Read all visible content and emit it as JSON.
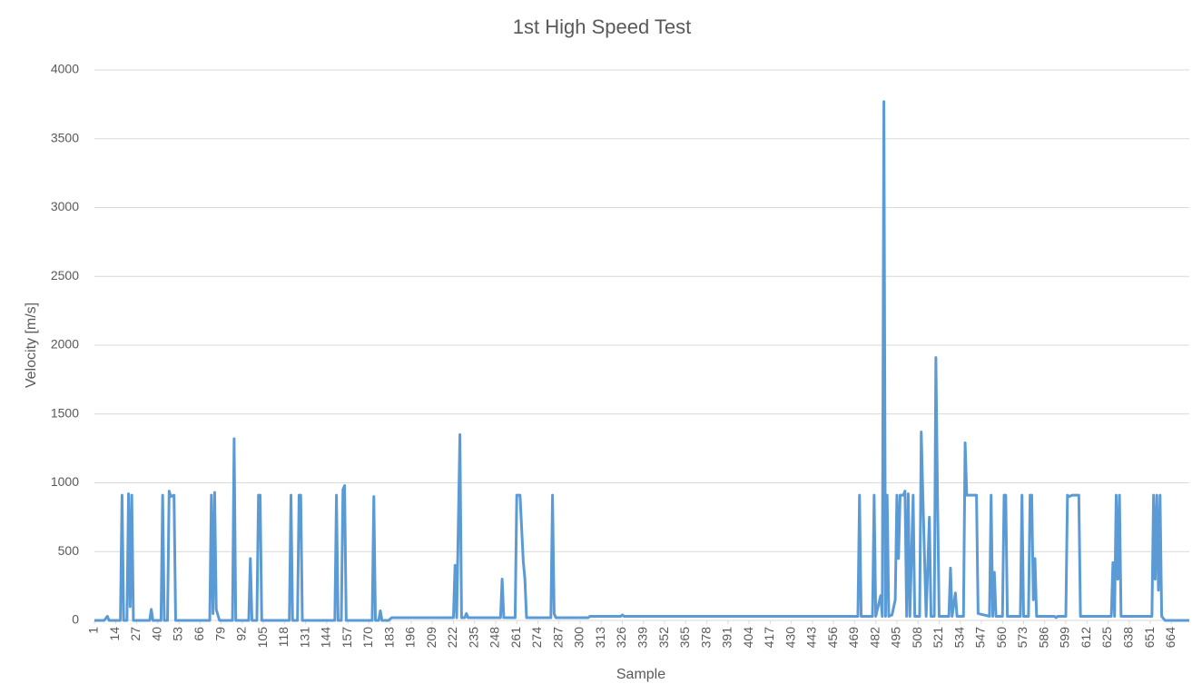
{
  "chart_data": {
    "type": "line",
    "title": "1st High Speed Test",
    "xlabel": "Sample",
    "ylabel": "Velocity [m/s]",
    "x": [
      1,
      7,
      9,
      10,
      17,
      18,
      19,
      21,
      22,
      23,
      24,
      25,
      35,
      36,
      37,
      42,
      43,
      44,
      46,
      47,
      48,
      50,
      51,
      72,
      73,
      74,
      75,
      76,
      78,
      86,
      87,
      88,
      96,
      97,
      98,
      101,
      102,
      103,
      104,
      121,
      122,
      123,
      126,
      127,
      128,
      129,
      149,
      150,
      151,
      153,
      154,
      155,
      156,
      172,
      173,
      174,
      176,
      177,
      178,
      182,
      184,
      222,
      223,
      224,
      226,
      227,
      229,
      230,
      231,
      251,
      252,
      253,
      260,
      261,
      263,
      265,
      266,
      267,
      282,
      283,
      284,
      285,
      305,
      306,
      325,
      326,
      327,
      471,
      472,
      473,
      480,
      481,
      482,
      485,
      486,
      487,
      488,
      489,
      490,
      492,
      494,
      495,
      496,
      497,
      499,
      500,
      501,
      502,
      503,
      505,
      506,
      509,
      510,
      511,
      513,
      515,
      516,
      518,
      519,
      520,
      521,
      524,
      527,
      528,
      529,
      531,
      532,
      536,
      537,
      538,
      544,
      545,
      552,
      553,
      554,
      555,
      556,
      560,
      561,
      562,
      563,
      571,
      572,
      573,
      576,
      577,
      578,
      579,
      580,
      581,
      592,
      593,
      594,
      599,
      600,
      601,
      603,
      607,
      608,
      627,
      628,
      629,
      630,
      631,
      632,
      633,
      652,
      653,
      654,
      655,
      656,
      657,
      658,
      660,
      675
    ],
    "series": [
      {
        "name": "Velocity",
        "color": "#5b9bd5",
        "values": [
          0,
          0,
          30,
          0,
          0,
          910,
          0,
          0,
          920,
          100,
          910,
          0,
          0,
          80,
          0,
          0,
          910,
          0,
          0,
          940,
          900,
          910,
          0,
          0,
          910,
          50,
          930,
          80,
          0,
          0,
          1320,
          0,
          0,
          450,
          0,
          0,
          910,
          910,
          0,
          0,
          910,
          0,
          0,
          910,
          910,
          0,
          0,
          910,
          0,
          0,
          950,
          980,
          0,
          0,
          900,
          0,
          0,
          70,
          0,
          0,
          20,
          20,
          400,
          20,
          1350,
          20,
          20,
          50,
          20,
          20,
          300,
          20,
          20,
          910,
          910,
          430,
          300,
          20,
          20,
          910,
          50,
          20,
          20,
          30,
          30,
          40,
          30,
          30,
          910,
          30,
          30,
          910,
          30,
          180,
          30,
          3770,
          30,
          910,
          30,
          40,
          150,
          910,
          450,
          910,
          910,
          940,
          30,
          920,
          30,
          910,
          30,
          30,
          1370,
          900,
          30,
          750,
          30,
          30,
          1910,
          900,
          30,
          30,
          30,
          380,
          30,
          200,
          30,
          30,
          1290,
          910,
          910,
          50,
          30,
          910,
          30,
          350,
          30,
          30,
          910,
          910,
          30,
          30,
          910,
          30,
          30,
          910,
          910,
          150,
          450,
          30,
          30,
          20,
          30,
          30,
          910,
          900,
          910,
          910,
          30,
          30,
          420,
          30,
          910,
          300,
          910,
          30,
          30,
          910,
          300,
          910,
          220,
          910,
          30,
          0,
          0
        ]
      }
    ],
    "xlim": [
      1,
      675
    ],
    "xticks": [
      1,
      14,
      27,
      40,
      53,
      66,
      79,
      92,
      105,
      118,
      131,
      144,
      157,
      170,
      183,
      196,
      209,
      222,
      235,
      248,
      261,
      274,
      287,
      300,
      313,
      326,
      339,
      352,
      365,
      378,
      391,
      404,
      417,
      430,
      443,
      456,
      469,
      482,
      495,
      508,
      521,
      534,
      547,
      560,
      573,
      586,
      599,
      612,
      625,
      638,
      651,
      664
    ],
    "ylim": [
      0,
      4000
    ],
    "yticks": [
      0,
      500,
      1000,
      1500,
      2000,
      2500,
      3000,
      3500,
      4000
    ],
    "grid": true
  }
}
